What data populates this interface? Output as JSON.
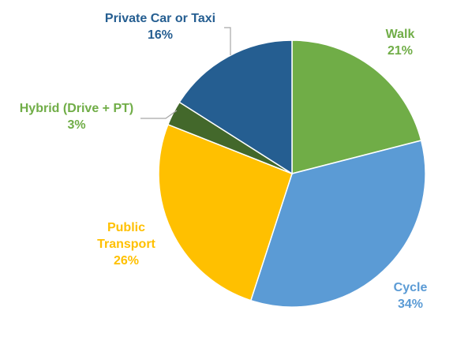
{
  "chart_data": {
    "type": "pie",
    "title": "",
    "slices": [
      {
        "label": "Walk",
        "value": 21,
        "value_label": "21%",
        "color": "#70ad47"
      },
      {
        "label": "Cycle",
        "value": 34,
        "value_label": "34%",
        "color": "#5b9bd5"
      },
      {
        "label": "Public Transport",
        "value": 26,
        "value_label": "26%",
        "color": "#ffc000"
      },
      {
        "label": "Hybrid (Drive + PT)",
        "value": 3,
        "value_label": "3%",
        "color": "#43682b"
      },
      {
        "label": "Private Car or Taxi",
        "value": 16,
        "value_label": "16%",
        "color": "#255e91"
      }
    ],
    "start_angle": "12 o'clock",
    "direction": "clockwise",
    "legend": "none"
  },
  "labels": {
    "walk": {
      "name": "Walk",
      "pct": "21%"
    },
    "cycle": {
      "name": "Cycle",
      "pct": "34%"
    },
    "public_transport": {
      "name_line1": "Public",
      "name_line2": "Transport",
      "pct": "26%"
    },
    "hybrid": {
      "name": "Hybrid (Drive + PT)",
      "pct": "3%"
    },
    "private_car": {
      "name": "Private Car or Taxi",
      "pct": "16%"
    }
  },
  "colors": {
    "walk_text": "#70ad47",
    "cycle_text": "#5b9bd5",
    "public_transport_text": "#ffc000",
    "hybrid_text": "#70ad47",
    "private_car_text": "#255e91",
    "leader_line": "#a6a6a6"
  }
}
